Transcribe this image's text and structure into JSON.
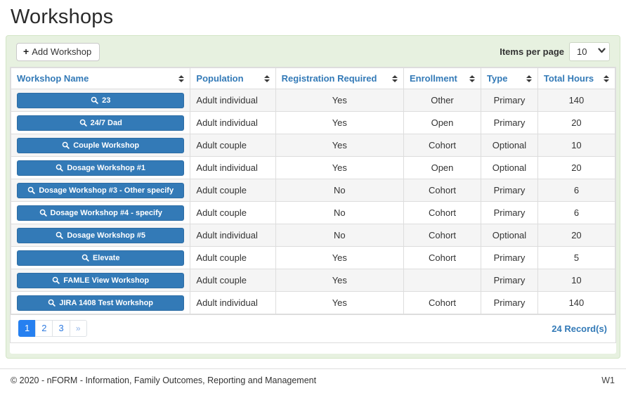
{
  "page": {
    "title": "Workshops"
  },
  "toolbar": {
    "add_button_label": "Add Workshop",
    "add_button_icon": "plus-icon",
    "items_per_page_label": "Items per page",
    "items_per_page_value": "10"
  },
  "table": {
    "columns": [
      {
        "label": "Workshop Name"
      },
      {
        "label": "Population"
      },
      {
        "label": "Registration Required"
      },
      {
        "label": "Enrollment"
      },
      {
        "label": "Type"
      },
      {
        "label": "Total Hours"
      }
    ],
    "rows": [
      {
        "name": "23",
        "population": "Adult individual",
        "registration_required": "Yes",
        "enrollment": "Other",
        "type": "Primary",
        "total_hours": "140"
      },
      {
        "name": "24/7 Dad",
        "population": "Adult individual",
        "registration_required": "Yes",
        "enrollment": "Open",
        "type": "Primary",
        "total_hours": "20"
      },
      {
        "name": "Couple Workshop",
        "population": "Adult couple",
        "registration_required": "Yes",
        "enrollment": "Cohort",
        "type": "Optional",
        "total_hours": "10"
      },
      {
        "name": "Dosage Workshop #1",
        "population": "Adult individual",
        "registration_required": "Yes",
        "enrollment": "Open",
        "type": "Optional",
        "total_hours": "20"
      },
      {
        "name": "Dosage Workshop #3 - Other specify",
        "population": "Adult couple",
        "registration_required": "No",
        "enrollment": "Cohort",
        "type": "Primary",
        "total_hours": "6"
      },
      {
        "name": "Dosage Workshop #4 - specify",
        "population": "Adult couple",
        "registration_required": "No",
        "enrollment": "Cohort",
        "type": "Primary",
        "total_hours": "6"
      },
      {
        "name": "Dosage Workshop #5",
        "population": "Adult individual",
        "registration_required": "No",
        "enrollment": "Cohort",
        "type": "Optional",
        "total_hours": "20"
      },
      {
        "name": "Elevate",
        "population": "Adult couple",
        "registration_required": "Yes",
        "enrollment": "Cohort",
        "type": "Primary",
        "total_hours": "5"
      },
      {
        "name": "FAMLE View Workshop",
        "population": "Adult couple",
        "registration_required": "Yes",
        "enrollment": "",
        "type": "Primary",
        "total_hours": "10"
      },
      {
        "name": "JIRA 1408 Test Workshop",
        "population": "Adult individual",
        "registration_required": "Yes",
        "enrollment": "Cohort",
        "type": "Primary",
        "total_hours": "140"
      }
    ]
  },
  "pagination": {
    "pages": [
      "1",
      "2",
      "3"
    ],
    "active_page": "1",
    "next_label": "»",
    "records_label": "24 Record(s)"
  },
  "footer": {
    "copyright": "© 2020 - nFORM - Information, Family Outcomes, Reporting and Management",
    "version": "W1"
  },
  "colors": {
    "accent_blue": "#337ab7",
    "panel_green": "#e7f1e0",
    "active_page_blue": "#2680f0",
    "row_stripe": "#f5f5f5"
  }
}
